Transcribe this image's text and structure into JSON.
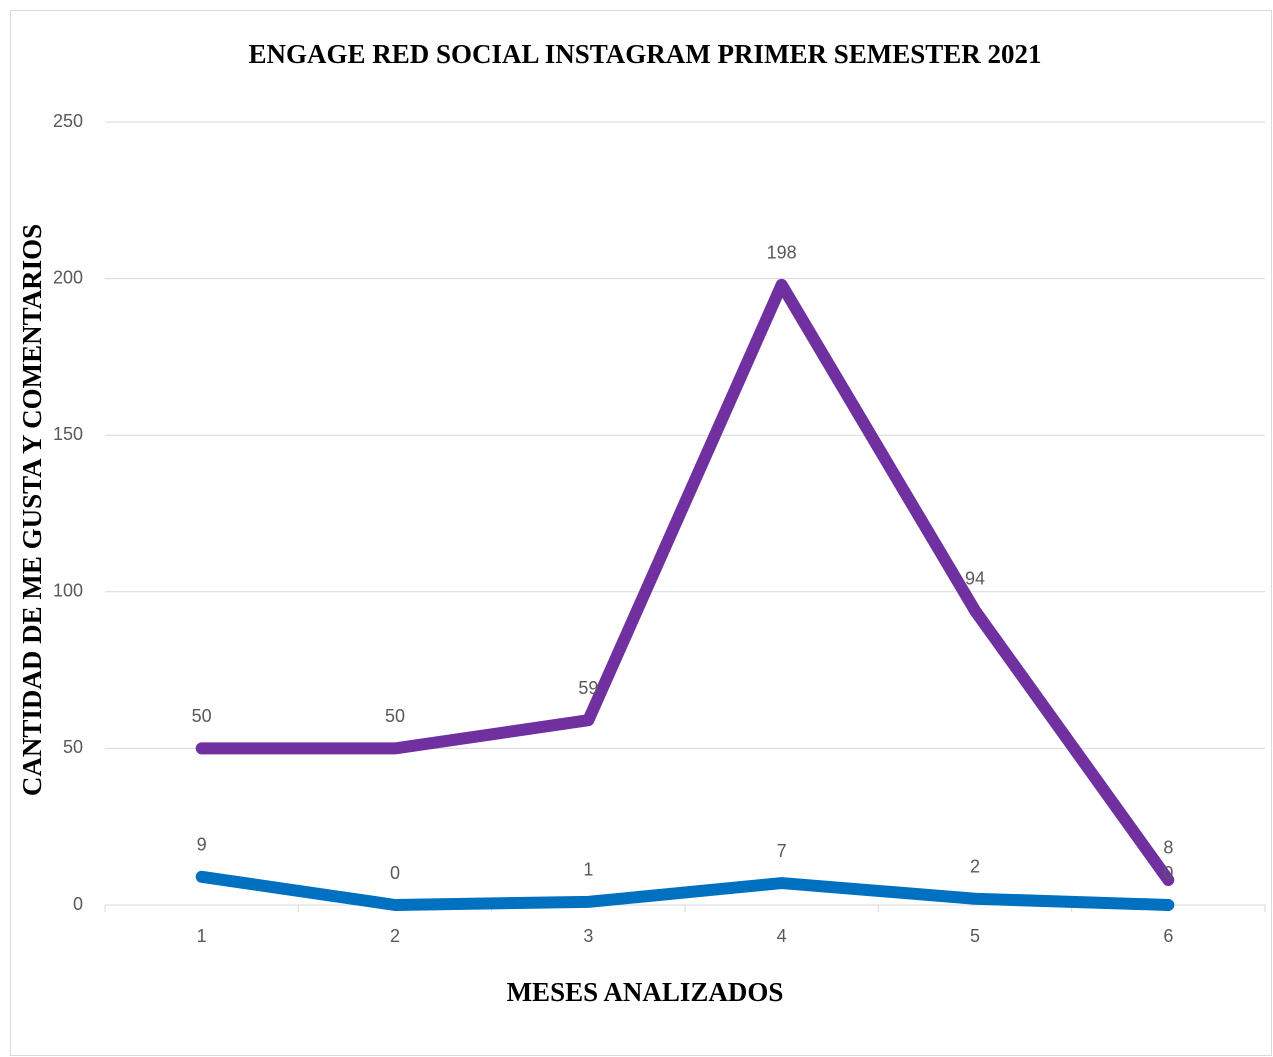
{
  "chart_data": {
    "type": "line",
    "title": "ENGAGE RED SOCIAL INSTAGRAM PRIMER SEMESTER 2021",
    "x_label": "MESES ANALIZADOS",
    "y_label": "CANTIDAD DE ME GUSTA Y COMENTARIOS",
    "categories": [
      "1",
      "2",
      "3",
      "4",
      "5",
      "6"
    ],
    "series": [
      {
        "color": "#7030a0",
        "values": [
          50,
          50,
          59,
          198,
          94,
          8
        ]
      },
      {
        "color": "#0070c0",
        "values": [
          9,
          0,
          1,
          7,
          2,
          0
        ]
      }
    ],
    "ylim": [
      0,
      250
    ],
    "yticks": [
      0,
      50,
      100,
      150,
      200,
      250
    ],
    "grid": true
  }
}
